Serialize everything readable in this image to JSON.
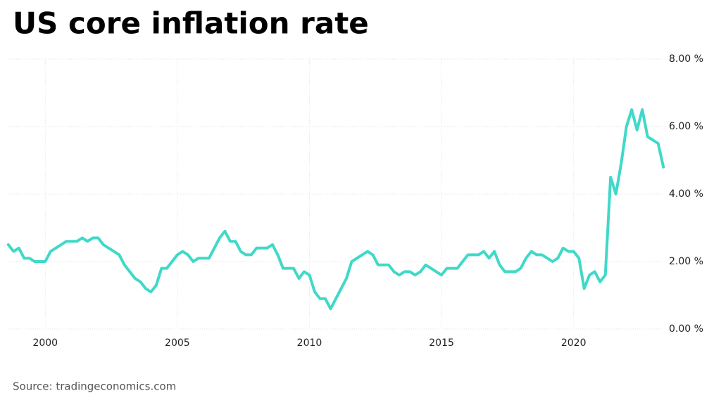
{
  "chart_data": {
    "type": "line",
    "title": "US core inflation rate",
    "source": "Source: tradingeconomics.com",
    "color": "#40d9c8",
    "grid": true,
    "x": [
      1998.6,
      1998.8,
      1999.0,
      1999.2,
      1999.4,
      1999.6,
      1999.8,
      2000.0,
      2000.2,
      2000.4,
      2000.6,
      2000.8,
      2001.0,
      2001.2,
      2001.4,
      2001.6,
      2001.8,
      2002.0,
      2002.2,
      2002.4,
      2002.6,
      2002.8,
      2003.0,
      2003.2,
      2003.4,
      2003.6,
      2003.8,
      2004.0,
      2004.2,
      2004.4,
      2004.6,
      2004.8,
      2005.0,
      2005.2,
      2005.4,
      2005.6,
      2005.8,
      2006.0,
      2006.2,
      2006.4,
      2006.6,
      2006.8,
      2007.0,
      2007.2,
      2007.4,
      2007.6,
      2007.8,
      2008.0,
      2008.2,
      2008.4,
      2008.6,
      2008.8,
      2009.0,
      2009.2,
      2009.4,
      2009.6,
      2009.8,
      2010.0,
      2010.2,
      2010.4,
      2010.6,
      2010.8,
      2011.0,
      2011.2,
      2011.4,
      2011.6,
      2011.8,
      2012.0,
      2012.2,
      2012.4,
      2012.6,
      2012.8,
      2013.0,
      2013.2,
      2013.4,
      2013.6,
      2013.8,
      2014.0,
      2014.2,
      2014.4,
      2014.6,
      2014.8,
      2015.0,
      2015.2,
      2015.4,
      2015.6,
      2015.8,
      2016.0,
      2016.2,
      2016.4,
      2016.6,
      2016.8,
      2017.0,
      2017.2,
      2017.4,
      2017.6,
      2017.8,
      2018.0,
      2018.2,
      2018.4,
      2018.6,
      2018.8,
      2019.0,
      2019.2,
      2019.4,
      2019.6,
      2019.8,
      2020.0,
      2020.2,
      2020.4,
      2020.6,
      2020.8,
      2021.0,
      2021.2,
      2021.4,
      2021.6,
      2021.8,
      2022.0,
      2022.2,
      2022.4,
      2022.6,
      2022.8,
      2023.0,
      2023.2,
      2023.4
    ],
    "values": [
      2.5,
      2.3,
      2.4,
      2.1,
      2.1,
      2.0,
      2.0,
      2.0,
      2.3,
      2.4,
      2.5,
      2.6,
      2.6,
      2.6,
      2.7,
      2.6,
      2.7,
      2.7,
      2.5,
      2.4,
      2.3,
      2.2,
      1.9,
      1.7,
      1.5,
      1.4,
      1.2,
      1.1,
      1.3,
      1.8,
      1.8,
      2.0,
      2.2,
      2.3,
      2.2,
      2.0,
      2.1,
      2.1,
      2.1,
      2.4,
      2.7,
      2.9,
      2.6,
      2.6,
      2.3,
      2.2,
      2.2,
      2.4,
      2.4,
      2.4,
      2.5,
      2.2,
      1.8,
      1.8,
      1.8,
      1.5,
      1.7,
      1.6,
      1.1,
      0.9,
      0.9,
      0.6,
      0.9,
      1.2,
      1.5,
      2.0,
      2.1,
      2.2,
      2.3,
      2.2,
      1.9,
      1.9,
      1.9,
      1.7,
      1.6,
      1.7,
      1.7,
      1.6,
      1.7,
      1.9,
      1.8,
      1.7,
      1.6,
      1.8,
      1.8,
      1.8,
      2.0,
      2.2,
      2.2,
      2.2,
      2.3,
      2.1,
      2.3,
      1.9,
      1.7,
      1.7,
      1.7,
      1.8,
      2.1,
      2.3,
      2.2,
      2.2,
      2.1,
      2.0,
      2.1,
      2.4,
      2.3,
      2.3,
      2.1,
      1.2,
      1.6,
      1.7,
      1.4,
      1.6,
      4.5,
      4.0,
      4.9,
      6.0,
      6.5,
      5.9,
      6.5,
      5.7,
      5.6,
      5.5,
      4.8
    ],
    "xlim": [
      1998.5,
      2023.5
    ],
    "xticks": [
      2000,
      2005,
      2010,
      2015,
      2020
    ],
    "ylim": [
      0,
      8
    ],
    "yticks": [
      {
        "value": 0,
        "label": "0.00 %"
      },
      {
        "value": 2,
        "label": "2.00 %"
      },
      {
        "value": 4,
        "label": "4.00 %"
      },
      {
        "value": 6,
        "label": "6.00 %"
      },
      {
        "value": 8,
        "label": "8.00 %"
      }
    ]
  }
}
